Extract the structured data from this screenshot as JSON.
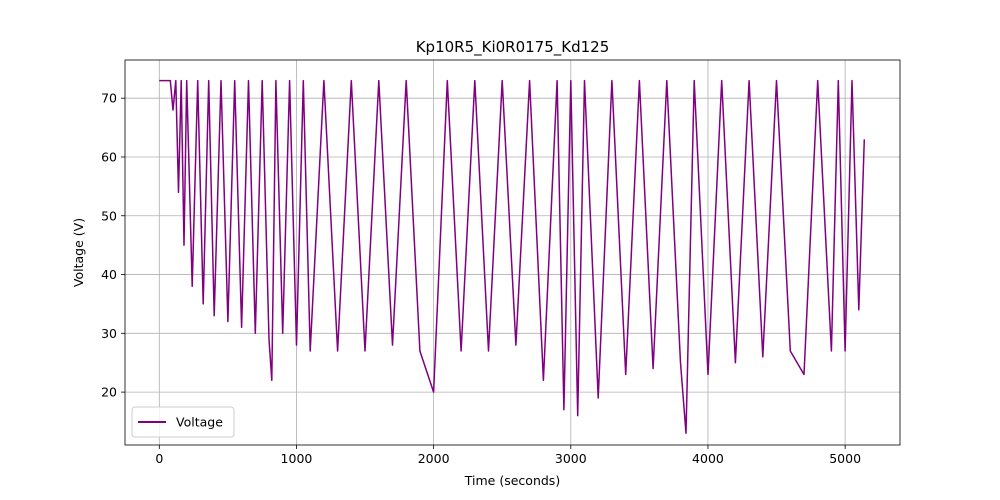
{
  "chart_data": {
    "type": "line",
    "title": "Kp10R5_Ki0R0175_Kd125",
    "xlabel": "Time (seconds)",
    "ylabel": "Voltage (V)",
    "xlim": [
      -250,
      5400
    ],
    "ylim": [
      11,
      76.5
    ],
    "xticks": [
      0,
      1000,
      2000,
      3000,
      4000,
      5000
    ],
    "yticks": [
      20,
      30,
      40,
      50,
      60,
      70
    ],
    "grid": true,
    "legend_position": "lower-left",
    "series": [
      {
        "name": "Voltage",
        "color": "#800080",
        "x": [
          0,
          40,
          80,
          100,
          120,
          140,
          160,
          180,
          200,
          240,
          280,
          320,
          360,
          400,
          450,
          500,
          550,
          600,
          650,
          700,
          750,
          800,
          820,
          850,
          900,
          950,
          1000,
          1050,
          1100,
          1200,
          1300,
          1400,
          1500,
          1600,
          1700,
          1800,
          1900,
          2000,
          2100,
          2200,
          2300,
          2400,
          2500,
          2600,
          2700,
          2800,
          2900,
          2950,
          3000,
          3050,
          3100,
          3200,
          3300,
          3400,
          3500,
          3600,
          3700,
          3800,
          3840,
          3900,
          4000,
          4100,
          4200,
          4300,
          4400,
          4500,
          4600,
          4700,
          4800,
          4900,
          4950,
          5000,
          5050,
          5100,
          5140
        ],
        "y": [
          73,
          73,
          73,
          68,
          73,
          54,
          73,
          45,
          73,
          38,
          73,
          35,
          73,
          33,
          73,
          32,
          73,
          31,
          73,
          30,
          73,
          29,
          22,
          73,
          30,
          73,
          28,
          73,
          27,
          73,
          27,
          73,
          27,
          73,
          28,
          73,
          27,
          20,
          73,
          27,
          73,
          27,
          73,
          28,
          73,
          22,
          73,
          17,
          73,
          16,
          73,
          19,
          73,
          23,
          73,
          24,
          73,
          25,
          13,
          73,
          23,
          73,
          25,
          73,
          26,
          73,
          27,
          23,
          73,
          27,
          73,
          27,
          73,
          34,
          63
        ]
      }
    ]
  },
  "legend": {
    "label": "Voltage"
  }
}
